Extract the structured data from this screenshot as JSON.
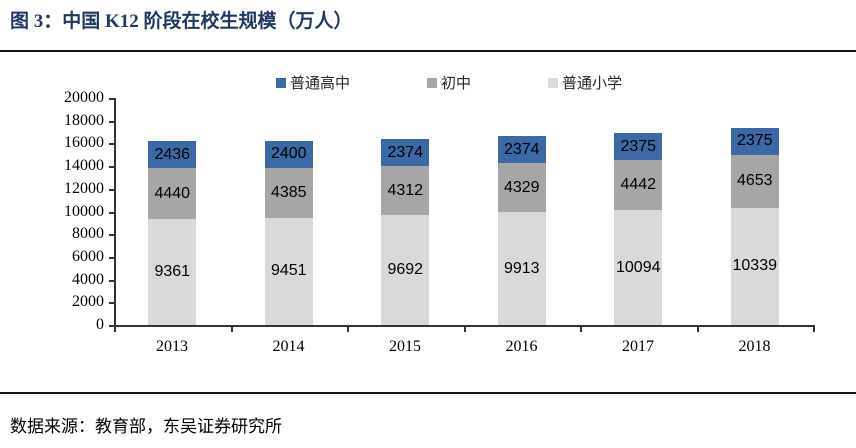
{
  "figure": {
    "title": "图 3：中国 K12 阶段在校生规模（万人）",
    "source": "数据来源：教育部，东吴证券研究所"
  },
  "colors": {
    "title_text": "#1F3864",
    "rule_line": "#111111",
    "axis_line": "#333333",
    "bar_label_text": "#000000",
    "high_school": "#3C69A5",
    "middle_school": "#A6A6A6",
    "primary_school": "#D9D9D9"
  },
  "chart_data": {
    "type": "bar",
    "stacked": true,
    "title": "中国 K12 阶段在校生规模（万人）",
    "categories": [
      "2013",
      "2014",
      "2015",
      "2016",
      "2017",
      "2018"
    ],
    "series": [
      {
        "name": "普通高中",
        "color": "#3C69A5",
        "values": [
          2436,
          2400,
          2374,
          2374,
          2375,
          2375
        ]
      },
      {
        "name": "初中",
        "color": "#A6A6A6",
        "values": [
          4440,
          4385,
          4312,
          4329,
          4442,
          4653
        ]
      },
      {
        "name": "普通小学",
        "color": "#D9D9D9",
        "values": [
          9361,
          9451,
          9692,
          9913,
          10094,
          10339
        ]
      }
    ],
    "stack_order_bottom_to_top": [
      "普通小学",
      "初中",
      "普通高中"
    ],
    "ylim": [
      0,
      20000
    ],
    "ytick_step": 2000,
    "ytick_labels": [
      "0",
      "2000",
      "4000",
      "6000",
      "8000",
      "10000",
      "12000",
      "14000",
      "16000",
      "18000",
      "20000"
    ],
    "legend_position": "top",
    "legend_order": [
      "普通高中",
      "初中",
      "普通小学"
    ],
    "grid": false,
    "xlabel": "",
    "ylabel": ""
  }
}
